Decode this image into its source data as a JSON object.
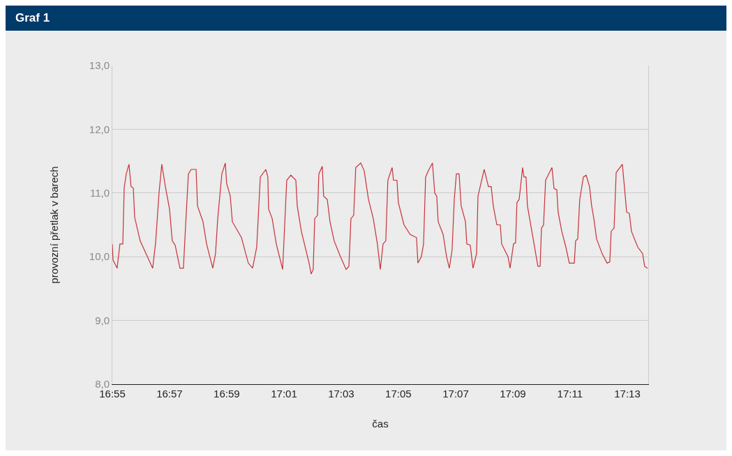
{
  "chart_data": {
    "type": "line",
    "title": "Graf 1",
    "xlabel": "čas",
    "ylabel": "provozní přetlak v barech",
    "color": "#c8313b",
    "grid": "y",
    "legend": false,
    "marker": "none",
    "line_style": "solid",
    "xlim": [
      16.9167,
      17.2289
    ],
    "ylim": [
      8,
      13
    ],
    "xticks": [
      {
        "value": 16.9167,
        "label": "16:55"
      },
      {
        "value": 16.95,
        "label": "16:57"
      },
      {
        "value": 16.9833,
        "label": "16:59"
      },
      {
        "value": 17.0167,
        "label": "17:01"
      },
      {
        "value": 17.05,
        "label": "17:03"
      },
      {
        "value": 17.0833,
        "label": "17:05"
      },
      {
        "value": 17.1167,
        "label": "17:07"
      },
      {
        "value": 17.15,
        "label": "17:09"
      },
      {
        "value": 17.1833,
        "label": "17:11"
      },
      {
        "value": 17.2167,
        "label": "17:13"
      }
    ],
    "yticks": [
      {
        "value": 8,
        "label": "8,0"
      },
      {
        "value": 9,
        "label": "9,0"
      },
      {
        "value": 10,
        "label": "10,0"
      },
      {
        "value": 11,
        "label": "11,0"
      },
      {
        "value": 12,
        "label": "12,0"
      },
      {
        "value": 13,
        "label": "13,0"
      }
    ],
    "x": [
      16.9167,
      16.9171,
      16.9195,
      16.9211,
      16.9228,
      16.9236,
      16.9248,
      16.9264,
      16.9276,
      16.9289,
      16.9297,
      16.9329,
      16.9402,
      16.9419,
      16.9439,
      16.9455,
      16.9476,
      16.95,
      16.9516,
      16.9533,
      16.9561,
      16.9581,
      16.9594,
      16.961,
      16.9626,
      16.9655,
      16.9663,
      16.9695,
      16.9716,
      16.9752,
      16.9768,
      16.9781,
      16.9805,
      16.9825,
      16.9833,
      16.9854,
      16.9866,
      16.9919,
      16.9959,
      16.9984,
      17.0008,
      17.0029,
      17.0061,
      17.0073,
      17.0077,
      17.0098,
      17.0122,
      17.0159,
      17.0183,
      17.0207,
      17.0236,
      17.0244,
      17.0268,
      17.0313,
      17.0325,
      17.0337,
      17.0346,
      17.0362,
      17.037,
      17.039,
      17.0398,
      17.0419,
      17.0435,
      17.0459,
      17.0496,
      17.0529,
      17.0545,
      17.0557,
      17.0573,
      17.0585,
      17.0614,
      17.0634,
      17.0659,
      17.0687,
      17.0711,
      17.0728,
      17.0744,
      17.076,
      17.0772,
      17.0797,
      17.0805,
      17.0825,
      17.0833,
      17.0866,
      17.0902,
      17.0939,
      17.0947,
      17.0967,
      17.098,
      17.0992,
      17.1008,
      17.1032,
      17.1045,
      17.1057,
      17.1065,
      17.1094,
      17.1114,
      17.113,
      17.1146,
      17.1159,
      17.1171,
      17.1187,
      17.1199,
      17.1224,
      17.1232,
      17.1252,
      17.1268,
      17.1289,
      17.1297,
      17.1333,
      17.1358,
      17.1374,
      17.1386,
      17.1407,
      17.1427,
      17.1435,
      17.1472,
      17.1484,
      17.1504,
      17.1516,
      17.1524,
      17.1537,
      17.1557,
      17.1565,
      17.1577,
      17.1585,
      17.1614,
      17.1646,
      17.1659,
      17.1667,
      17.1679,
      17.1691,
      17.1728,
      17.174,
      17.1756,
      17.1764,
      17.1785,
      17.1809,
      17.1829,
      17.1858,
      17.1866,
      17.1878,
      17.189,
      17.1911,
      17.1927,
      17.1947,
      17.1959,
      17.1972,
      17.1988,
      17.202,
      17.2049,
      17.2065,
      17.2073,
      17.209,
      17.2102,
      17.2138,
      17.215,
      17.2163,
      17.2179,
      17.2191,
      17.2228,
      17.2256,
      17.2268,
      17.2285
    ],
    "values": [
      10.2,
      9.95,
      9.82,
      10.2,
      10.2,
      11.08,
      11.3,
      11.45,
      11.1,
      11.08,
      10.62,
      10.25,
      9.82,
      10.22,
      11.0,
      11.45,
      11.1,
      10.75,
      10.25,
      10.18,
      9.82,
      9.82,
      10.5,
      11.3,
      11.37,
      11.37,
      10.8,
      10.55,
      10.2,
      9.82,
      10.05,
      10.6,
      11.3,
      11.47,
      11.15,
      10.95,
      10.55,
      10.3,
      9.9,
      9.82,
      10.15,
      11.25,
      11.37,
      11.25,
      10.75,
      10.6,
      10.2,
      9.8,
      11.2,
      11.28,
      11.2,
      10.8,
      10.4,
      9.9,
      9.73,
      9.8,
      10.6,
      10.65,
      11.3,
      11.42,
      10.95,
      10.9,
      10.55,
      10.25,
      10.0,
      9.8,
      9.85,
      10.6,
      10.65,
      11.4,
      11.47,
      11.35,
      10.9,
      10.6,
      10.2,
      9.8,
      10.2,
      10.25,
      11.2,
      11.4,
      11.2,
      11.2,
      10.85,
      10.5,
      10.35,
      10.3,
      9.9,
      10.0,
      10.2,
      11.25,
      11.35,
      11.47,
      11.0,
      10.95,
      10.55,
      10.35,
      10.0,
      9.82,
      10.1,
      10.9,
      11.3,
      11.3,
      10.8,
      10.55,
      10.2,
      10.18,
      9.82,
      10.05,
      10.95,
      11.37,
      11.1,
      11.1,
      10.8,
      10.5,
      10.5,
      10.2,
      10.0,
      9.82,
      10.2,
      10.22,
      10.85,
      10.9,
      11.4,
      11.25,
      11.25,
      10.8,
      10.35,
      9.85,
      9.85,
      10.45,
      10.5,
      11.2,
      11.4,
      11.07,
      11.05,
      10.7,
      10.4,
      10.15,
      9.9,
      9.9,
      10.25,
      10.28,
      10.9,
      11.25,
      11.28,
      11.1,
      10.8,
      10.6,
      10.28,
      10.05,
      9.9,
      9.92,
      10.4,
      10.45,
      11.32,
      11.45,
      11.1,
      10.7,
      10.68,
      10.4,
      10.15,
      10.05,
      9.85,
      9.82
    ]
  }
}
